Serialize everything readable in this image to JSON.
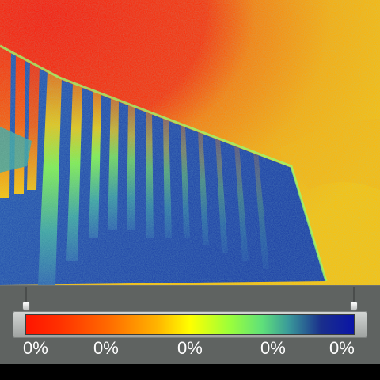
{
  "thermal_image": {
    "palette": [
      "#ff1500",
      "#ff6a00",
      "#ffb400",
      "#ffff00",
      "#9cff3a",
      "#5fe07a",
      "#1a2f8c",
      "#0a14a6"
    ]
  },
  "scale": {
    "labels": [
      "0%",
      "0%",
      "0%",
      "0%",
      "0%"
    ],
    "range_low": 0,
    "range_high": 1
  }
}
